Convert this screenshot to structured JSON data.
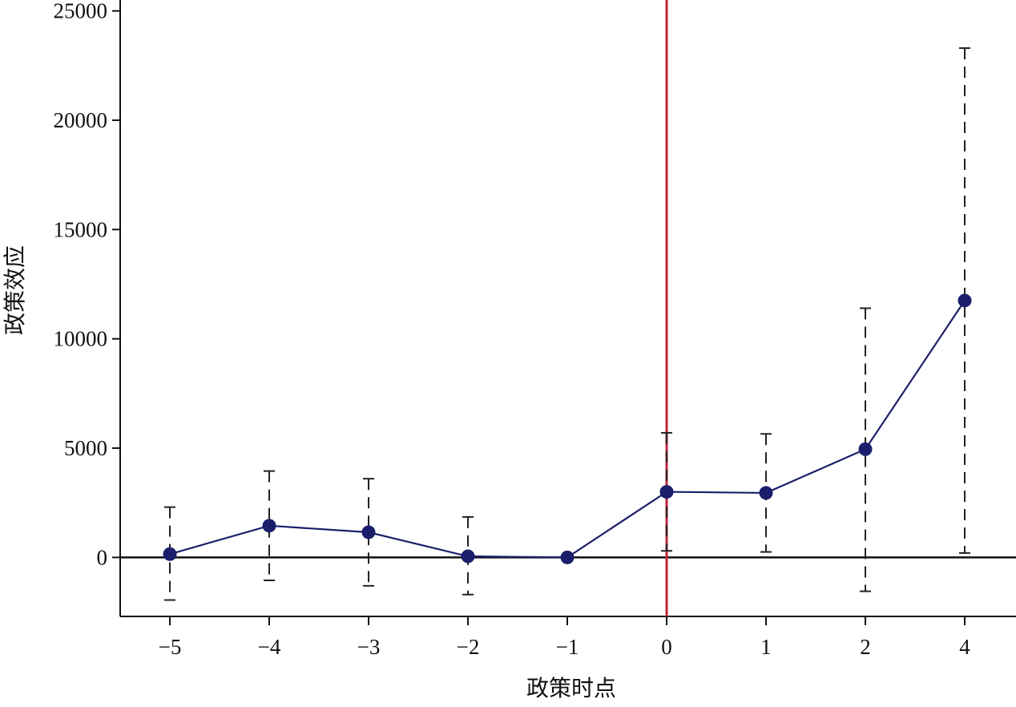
{
  "chart_data": {
    "type": "line",
    "xlabel": "政策时点",
    "ylabel": "政策效应",
    "x_categories": [
      "−5",
      "−4",
      "−3",
      "−2",
      "−1",
      "0",
      "1",
      "2",
      "4"
    ],
    "ylim": [
      -2700,
      25500
    ],
    "y_ticks": [
      0,
      5000,
      10000,
      15000,
      20000,
      25000
    ],
    "y_tick_labels": [
      "0",
      "5000",
      "10000",
      "15000",
      "20000",
      "25000"
    ],
    "reference_line": {
      "x": "0",
      "color": "#c0243c"
    },
    "zero_line": 0,
    "grid": false,
    "series": [
      {
        "color": "#1b1f6b",
        "values": [
          150,
          1450,
          1150,
          50,
          0,
          3000,
          2950,
          4950,
          11750
        ],
        "ci_low": [
          -1950,
          -1050,
          -1300,
          -1700,
          0,
          300,
          250,
          -1550,
          200
        ],
        "ci_high": [
          2300,
          3950,
          3600,
          1850,
          0,
          5700,
          5650,
          11400,
          23300
        ]
      }
    ]
  }
}
